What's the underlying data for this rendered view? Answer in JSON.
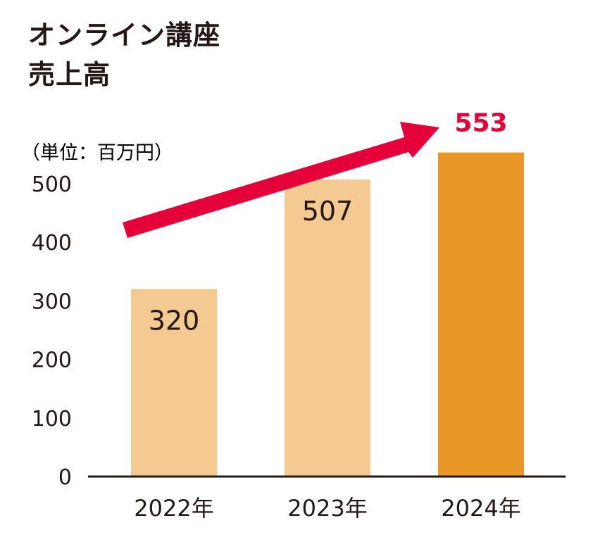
{
  "title": {
    "line1": "オンライン講座",
    "line2": "売上高"
  },
  "unit_label": "（単位：百万円）",
  "colors": {
    "bar_light": "#F4C992",
    "bar_highlight": "#E99827",
    "arrow": "#E60039",
    "highlight_label": "#E60039",
    "text": "#231815",
    "axis": "#231815"
  },
  "chart_data": {
    "type": "bar",
    "title": "オンライン講座 売上高",
    "ylabel": "（単位：百万円）",
    "xlabel": "",
    "categories": [
      "2022年",
      "2023年",
      "2024年"
    ],
    "values": [
      320,
      507,
      553
    ],
    "data_labels": [
      "320",
      "507",
      "553"
    ],
    "highlight_index": 2,
    "ylim": [
      0,
      500
    ],
    "yticks": [
      0,
      100,
      200,
      300,
      400,
      500
    ],
    "ytick_labels": [
      "0",
      "100",
      "200",
      "300",
      "400",
      "500"
    ],
    "grid": false,
    "legend": "none",
    "annotation": "upward-trend-arrow"
  }
}
